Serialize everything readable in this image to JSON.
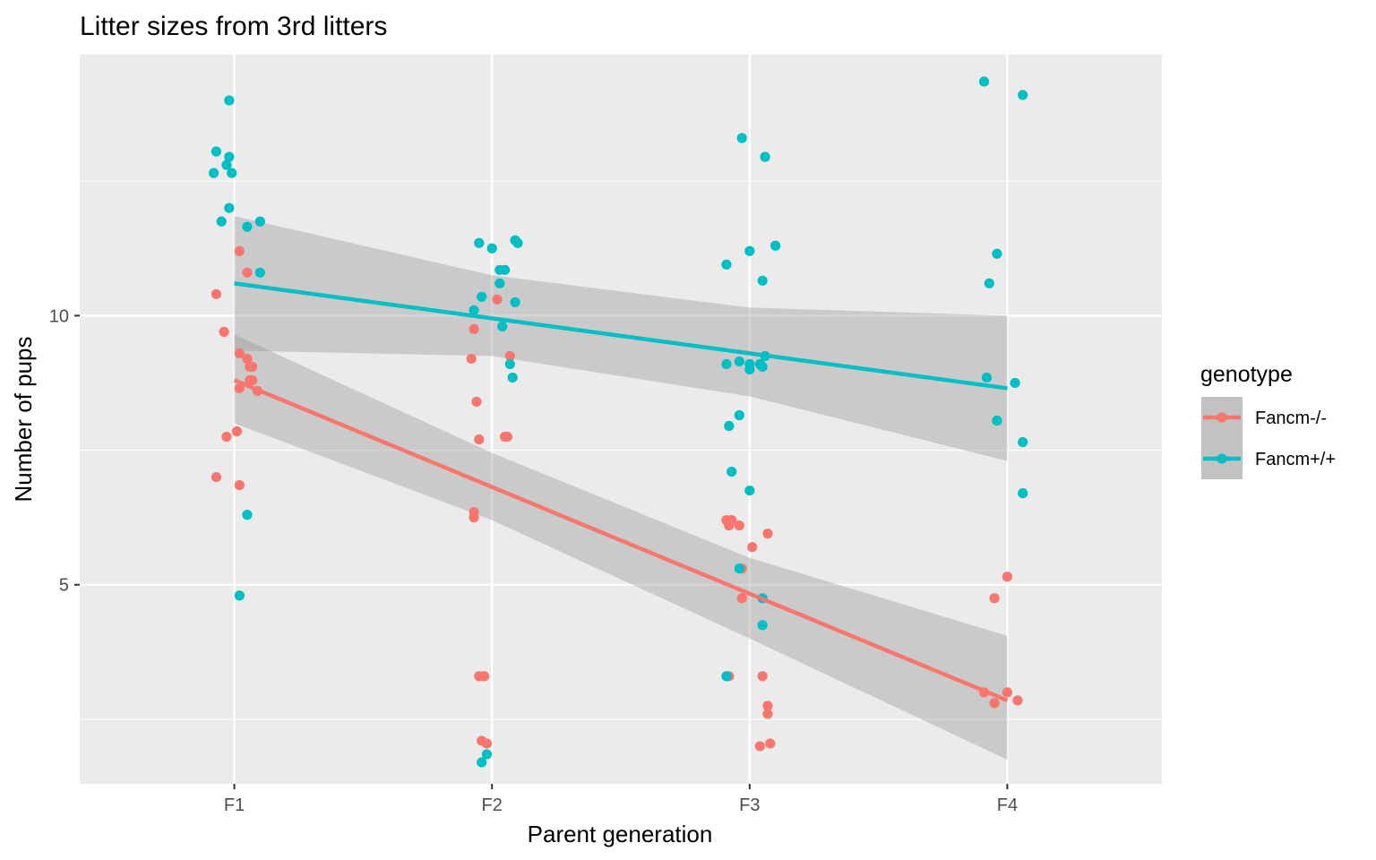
{
  "chart_data": {
    "type": "scatter",
    "title": "Litter sizes from 3rd litters",
    "xlabel": "Parent generation",
    "ylabel": "Number of pups",
    "categories": [
      "F1",
      "F2",
      "F3",
      "F4"
    ],
    "y_ticks": [
      5,
      10
    ],
    "ylim": [
      1.3,
      14.85
    ],
    "grid": true,
    "legend": {
      "title": "genotype",
      "placement": "right",
      "entries": [
        "Fancm-/-",
        "Fancm+/+"
      ]
    },
    "series": [
      {
        "name": "Fancm-/-",
        "color": "#F8766D",
        "points": [
          {
            "x": 0.93,
            "y": 10.4
          },
          {
            "x": 0.96,
            "y": 9.7
          },
          {
            "x": 1.02,
            "y": 11.2
          },
          {
            "x": 1.05,
            "y": 10.8
          },
          {
            "x": 1.02,
            "y": 9.3
          },
          {
            "x": 1.05,
            "y": 9.2
          },
          {
            "x": 1.06,
            "y": 9.05
          },
          {
            "x": 1.07,
            "y": 9.05
          },
          {
            "x": 1.06,
            "y": 8.8
          },
          {
            "x": 1.07,
            "y": 8.8
          },
          {
            "x": 1.02,
            "y": 8.65
          },
          {
            "x": 1.09,
            "y": 8.6
          },
          {
            "x": 1.01,
            "y": 7.85
          },
          {
            "x": 0.97,
            "y": 7.75
          },
          {
            "x": 0.93,
            "y": 7.0
          },
          {
            "x": 1.02,
            "y": 6.85
          },
          {
            "x": 1.93,
            "y": 9.75
          },
          {
            "x": 2.02,
            "y": 10.3
          },
          {
            "x": 1.92,
            "y": 9.2
          },
          {
            "x": 2.07,
            "y": 9.25
          },
          {
            "x": 1.94,
            "y": 8.4
          },
          {
            "x": 1.95,
            "y": 7.7
          },
          {
            "x": 2.05,
            "y": 7.75
          },
          {
            "x": 2.06,
            "y": 7.75
          },
          {
            "x": 1.93,
            "y": 6.35
          },
          {
            "x": 1.93,
            "y": 6.25
          },
          {
            "x": 1.95,
            "y": 3.3
          },
          {
            "x": 1.97,
            "y": 3.3
          },
          {
            "x": 1.96,
            "y": 2.1
          },
          {
            "x": 1.98,
            "y": 2.05
          },
          {
            "x": 2.91,
            "y": 6.2
          },
          {
            "x": 2.93,
            "y": 6.2
          },
          {
            "x": 2.92,
            "y": 6.1
          },
          {
            "x": 2.96,
            "y": 6.1
          },
          {
            "x": 3.07,
            "y": 5.95
          },
          {
            "x": 3.01,
            "y": 5.7
          },
          {
            "x": 2.97,
            "y": 5.3
          },
          {
            "x": 2.97,
            "y": 4.75
          },
          {
            "x": 2.92,
            "y": 3.3
          },
          {
            "x": 3.05,
            "y": 3.3
          },
          {
            "x": 3.07,
            "y": 2.75
          },
          {
            "x": 3.07,
            "y": 2.6
          },
          {
            "x": 3.04,
            "y": 2.0
          },
          {
            "x": 3.08,
            "y": 2.05
          },
          {
            "x": 4.0,
            "y": 5.15
          },
          {
            "x": 3.95,
            "y": 4.75
          },
          {
            "x": 3.91,
            "y": 3.0
          },
          {
            "x": 4.0,
            "y": 3.0
          },
          {
            "x": 3.95,
            "y": 2.8
          },
          {
            "x": 4.04,
            "y": 2.85
          }
        ],
        "trend": {
          "x": [
            1,
            4
          ],
          "y": [
            8.8,
            2.85
          ]
        },
        "band": {
          "x": [
            1,
            2,
            3,
            4
          ],
          "lower": [
            8.0,
            6.2,
            4.0,
            1.75
          ],
          "upper": [
            9.65,
            7.45,
            5.5,
            4.05
          ]
        }
      },
      {
        "name": "Fancm+/+",
        "color": "#00BFC4",
        "points": [
          {
            "x": 0.98,
            "y": 14.0
          },
          {
            "x": 0.93,
            "y": 13.05
          },
          {
            "x": 0.98,
            "y": 12.95
          },
          {
            "x": 0.97,
            "y": 12.8
          },
          {
            "x": 0.92,
            "y": 12.65
          },
          {
            "x": 0.99,
            "y": 12.65
          },
          {
            "x": 0.98,
            "y": 12.0
          },
          {
            "x": 0.95,
            "y": 11.75
          },
          {
            "x": 1.05,
            "y": 11.65
          },
          {
            "x": 1.1,
            "y": 11.75
          },
          {
            "x": 1.1,
            "y": 10.8
          },
          {
            "x": 1.05,
            "y": 6.3
          },
          {
            "x": 1.02,
            "y": 4.8
          },
          {
            "x": 1.95,
            "y": 11.35
          },
          {
            "x": 2.0,
            "y": 11.25
          },
          {
            "x": 2.09,
            "y": 11.4
          },
          {
            "x": 2.1,
            "y": 11.35
          },
          {
            "x": 2.03,
            "y": 10.85
          },
          {
            "x": 2.05,
            "y": 10.85
          },
          {
            "x": 2.03,
            "y": 10.6
          },
          {
            "x": 1.96,
            "y": 10.35
          },
          {
            "x": 2.09,
            "y": 10.25
          },
          {
            "x": 1.93,
            "y": 10.1
          },
          {
            "x": 2.04,
            "y": 9.8
          },
          {
            "x": 2.07,
            "y": 9.1
          },
          {
            "x": 2.08,
            "y": 8.85
          },
          {
            "x": 1.98,
            "y": 1.85
          },
          {
            "x": 1.96,
            "y": 1.7
          },
          {
            "x": 2.97,
            "y": 13.3
          },
          {
            "x": 3.06,
            "y": 12.95
          },
          {
            "x": 3.1,
            "y": 11.3
          },
          {
            "x": 3.0,
            "y": 11.2
          },
          {
            "x": 2.91,
            "y": 10.95
          },
          {
            "x": 3.05,
            "y": 10.65
          },
          {
            "x": 3.06,
            "y": 9.25
          },
          {
            "x": 2.96,
            "y": 9.15
          },
          {
            "x": 3.0,
            "y": 9.1
          },
          {
            "x": 3.04,
            "y": 9.1
          },
          {
            "x": 2.91,
            "y": 9.1
          },
          {
            "x": 3.05,
            "y": 9.05
          },
          {
            "x": 3.0,
            "y": 9.0
          },
          {
            "x": 2.96,
            "y": 8.15
          },
          {
            "x": 2.92,
            "y": 7.95
          },
          {
            "x": 2.93,
            "y": 7.1
          },
          {
            "x": 3.0,
            "y": 6.75
          },
          {
            "x": 2.96,
            "y": 5.3
          },
          {
            "x": 3.05,
            "y": 4.75
          },
          {
            "x": 3.05,
            "y": 4.25
          },
          {
            "x": 2.91,
            "y": 3.3
          },
          {
            "x": 3.91,
            "y": 14.35
          },
          {
            "x": 4.06,
            "y": 14.1
          },
          {
            "x": 3.96,
            "y": 11.15
          },
          {
            "x": 3.93,
            "y": 10.6
          },
          {
            "x": 3.92,
            "y": 8.85
          },
          {
            "x": 4.03,
            "y": 8.75
          },
          {
            "x": 3.96,
            "y": 8.05
          },
          {
            "x": 4.06,
            "y": 7.65
          },
          {
            "x": 4.06,
            "y": 6.7
          }
        ],
        "trend": {
          "x": [
            1,
            4
          ],
          "y": [
            10.6,
            8.65
          ]
        },
        "band": {
          "x": [
            1,
            2,
            3,
            4
          ],
          "lower": [
            9.35,
            9.25,
            8.5,
            7.3
          ],
          "upper": [
            11.85,
            10.75,
            10.15,
            10.0
          ]
        }
      }
    ]
  }
}
